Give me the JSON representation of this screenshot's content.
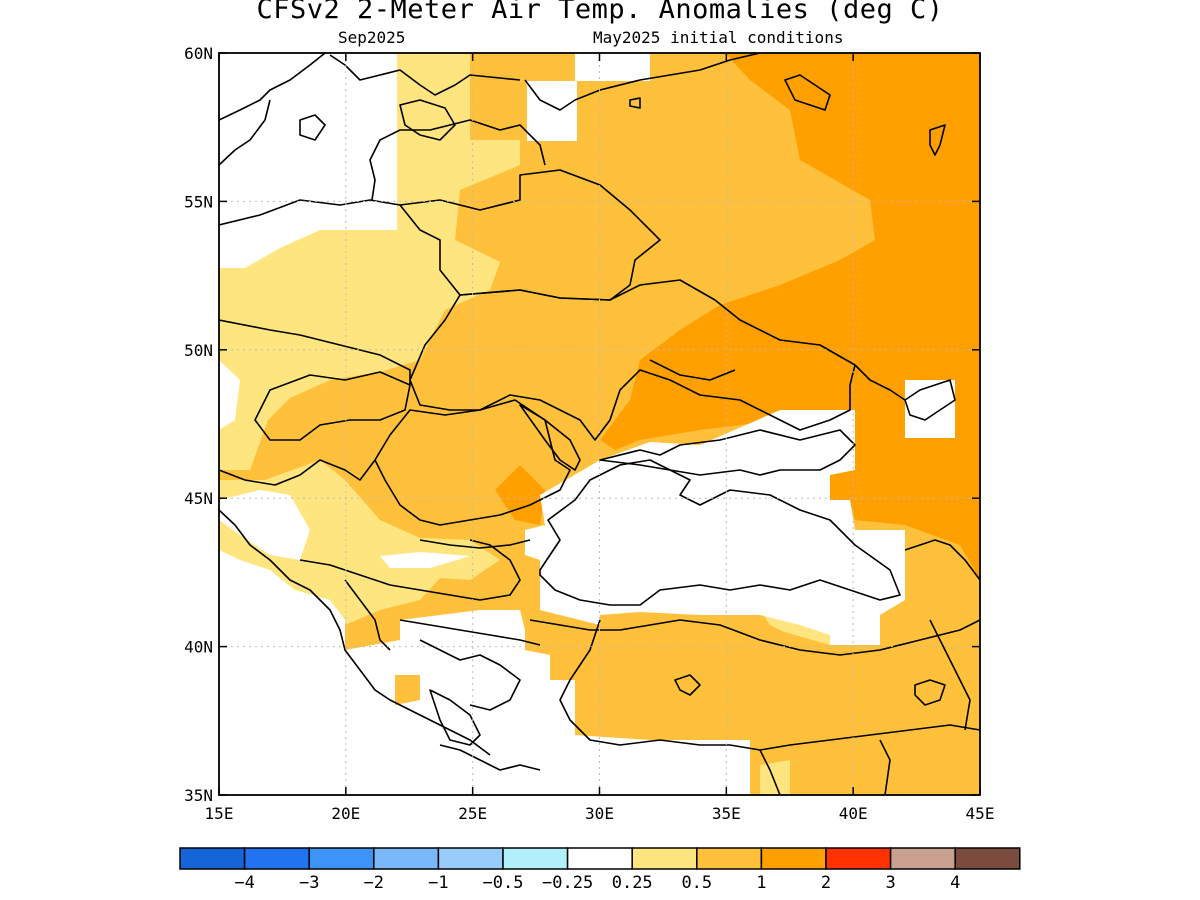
{
  "title": "CFSv2 2-Meter Air Temp. Anomalies (deg C)",
  "subtitle_left": "Sep2025",
  "subtitle_right": "May2025 initial conditions",
  "map": {
    "lon_range": [
      15,
      45
    ],
    "lat_range": [
      35,
      60
    ],
    "lon_ticks": [
      "15E",
      "20E",
      "25E",
      "30E",
      "35E",
      "40E",
      "45E"
    ],
    "lat_ticks": [
      "60N",
      "55N",
      "50N",
      "45N",
      "40N",
      "35N"
    ],
    "grid": true
  },
  "colors": {
    "c_0_25_0_5": "#ffe57f",
    "c_0_5_1": "#ffc03c",
    "c_1_2": "#ff9f00",
    "c_2_3": "#ff3300",
    "land_outline": "#000000"
  },
  "legend": {
    "colors": [
      "#1665d8",
      "#2273f0",
      "#3d93f6",
      "#79b9f9",
      "#98ccfb",
      "#b2effd",
      "#ffffff",
      "#ffe57f",
      "#ffc03c",
      "#ff9f00",
      "#ff3300",
      "#c9a08f",
      "#7b4c3e"
    ],
    "labels": [
      "−4",
      "−3",
      "−2",
      "−1",
      "−0.5",
      "−0.25",
      "0.25",
      "0.5",
      "1",
      "2",
      "3",
      "4"
    ]
  }
}
